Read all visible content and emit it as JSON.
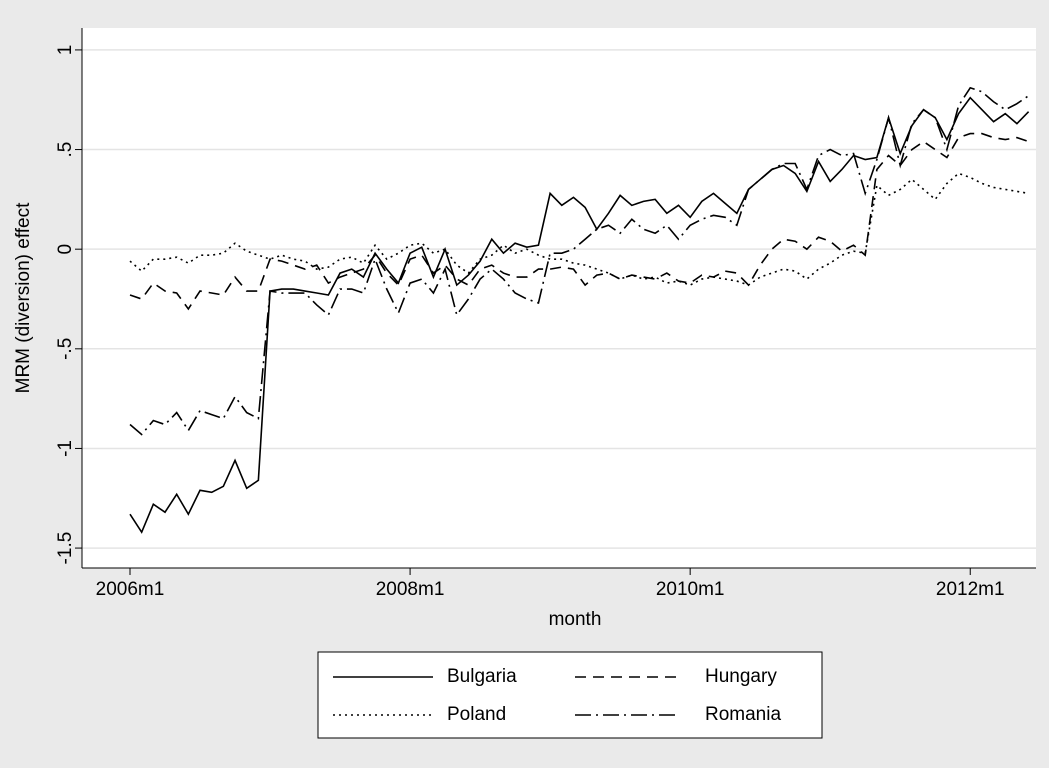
{
  "chart_data": {
    "type": "line",
    "x": [
      "2006m1",
      "2006m2",
      "2006m3",
      "2006m4",
      "2006m5",
      "2006m6",
      "2006m7",
      "2006m8",
      "2006m9",
      "2006m10",
      "2006m11",
      "2006m12",
      "2007m1",
      "2007m2",
      "2007m3",
      "2007m4",
      "2007m5",
      "2007m6",
      "2007m7",
      "2007m8",
      "2007m9",
      "2007m10",
      "2007m11",
      "2007m12",
      "2008m1",
      "2008m2",
      "2008m3",
      "2008m4",
      "2008m5",
      "2008m6",
      "2008m7",
      "2008m8",
      "2008m9",
      "2008m10",
      "2008m11",
      "2008m12",
      "2009m1",
      "2009m2",
      "2009m3",
      "2009m4",
      "2009m5",
      "2009m6",
      "2009m7",
      "2009m8",
      "2009m9",
      "2009m10",
      "2009m11",
      "2009m12",
      "2010m1",
      "2010m2",
      "2010m3",
      "2010m4",
      "2010m5",
      "2010m6",
      "2010m7",
      "2010m8",
      "2010m9",
      "2010m10",
      "2010m11",
      "2010m12",
      "2011m1",
      "2011m2",
      "2011m3",
      "2011m4",
      "2011m5",
      "2011m6",
      "2011m7",
      "2011m8",
      "2011m9",
      "2011m10",
      "2011m11",
      "2011m12",
      "2012m1",
      "2012m2",
      "2012m3",
      "2012m4",
      "2012m5",
      "2012m6"
    ],
    "xticks": [
      "2006m1",
      "2008m1",
      "2010m1",
      "2012m1"
    ],
    "x_label": "month",
    "y_label": "MRM (diversion) effect",
    "ylim": [
      -1.6,
      1.11
    ],
    "yticks": [
      -1.5,
      -1,
      {
        "value": -0.5,
        "label": "-.5"
      },
      0,
      {
        "value": 0.5,
        "label": ".5"
      },
      1
    ],
    "grid": true,
    "legend": "bottom",
    "series": [
      {
        "name": "Bulgaria",
        "color": "#000000",
        "linestyle": "solid",
        "values": [
          -1.33,
          -1.42,
          -1.28,
          -1.32,
          -1.23,
          -1.33,
          -1.21,
          -1.22,
          -1.19,
          -1.06,
          -1.2,
          -1.16,
          -0.21,
          -0.2,
          -0.2,
          -0.21,
          -0.22,
          -0.23,
          -0.12,
          -0.1,
          -0.14,
          -0.02,
          -0.1,
          -0.17,
          -0.02,
          0.01,
          -0.14,
          0.0,
          -0.18,
          -0.13,
          -0.06,
          0.05,
          -0.02,
          0.03,
          0.01,
          0.02,
          0.28,
          0.22,
          0.26,
          0.21,
          0.1,
          0.18,
          0.27,
          0.22,
          0.24,
          0.25,
          0.18,
          0.22,
          0.16,
          0.24,
          0.28,
          0.23,
          0.18,
          0.3,
          0.35,
          0.4,
          0.42,
          0.38,
          0.29,
          0.44,
          0.34,
          0.4,
          0.47,
          0.45,
          0.46,
          0.66,
          0.48,
          0.62,
          0.7,
          0.66,
          0.55,
          0.68,
          0.76,
          0.7,
          0.64,
          0.68,
          0.63,
          0.69
        ]
      },
      {
        "name": "Hungary",
        "color": "#000000",
        "linestyle": "dashed",
        "values": [
          -0.23,
          -0.25,
          -0.17,
          -0.21,
          -0.22,
          -0.3,
          -0.21,
          -0.22,
          -0.23,
          -0.14,
          -0.21,
          -0.21,
          -0.05,
          -0.06,
          -0.08,
          -0.1,
          -0.08,
          -0.17,
          -0.14,
          -0.12,
          -0.1,
          -0.03,
          -0.12,
          -0.18,
          -0.05,
          -0.03,
          -0.12,
          -0.08,
          -0.15,
          -0.18,
          -0.1,
          -0.08,
          -0.12,
          -0.14,
          -0.14,
          -0.1,
          -0.1,
          -0.09,
          -0.1,
          -0.18,
          -0.13,
          -0.12,
          -0.15,
          -0.13,
          -0.14,
          -0.15,
          -0.12,
          -0.16,
          -0.17,
          -0.13,
          -0.14,
          -0.11,
          -0.12,
          -0.18,
          -0.08,
          0.0,
          0.05,
          0.04,
          0.0,
          0.06,
          0.04,
          -0.01,
          0.02,
          -0.03,
          0.4,
          0.47,
          0.42,
          0.5,
          0.54,
          0.5,
          0.46,
          0.56,
          0.58,
          0.58,
          0.56,
          0.55,
          0.56,
          0.54
        ]
      },
      {
        "name": "Poland",
        "color": "#000000",
        "linestyle": "dotted",
        "values": [
          -0.06,
          -0.11,
          -0.05,
          -0.05,
          -0.04,
          -0.07,
          -0.03,
          -0.03,
          -0.02,
          0.03,
          -0.01,
          -0.03,
          -0.05,
          -0.03,
          -0.05,
          -0.06,
          -0.1,
          -0.09,
          -0.05,
          -0.04,
          -0.07,
          0.02,
          -0.05,
          -0.02,
          0.02,
          0.03,
          -0.02,
          0.0,
          -0.08,
          -0.12,
          -0.05,
          -0.03,
          0.02,
          -0.02,
          0.0,
          -0.03,
          -0.05,
          -0.05,
          -0.07,
          -0.08,
          -0.1,
          -0.12,
          -0.15,
          -0.13,
          -0.15,
          -0.14,
          -0.17,
          -0.16,
          -0.18,
          -0.15,
          -0.14,
          -0.15,
          -0.16,
          -0.18,
          -0.14,
          -0.12,
          -0.1,
          -0.11,
          -0.15,
          -0.1,
          -0.07,
          -0.03,
          -0.01,
          -0.02,
          0.32,
          0.27,
          0.3,
          0.35,
          0.3,
          0.25,
          0.33,
          0.38,
          0.36,
          0.33,
          0.31,
          0.3,
          0.29,
          0.28
        ]
      },
      {
        "name": "Romania",
        "color": "#000000",
        "linestyle": "dashdot",
        "values": [
          -0.88,
          -0.93,
          -0.86,
          -0.88,
          -0.82,
          -0.91,
          -0.81,
          -0.83,
          -0.85,
          -0.74,
          -0.82,
          -0.85,
          -0.21,
          -0.22,
          -0.22,
          -0.22,
          -0.28,
          -0.33,
          -0.2,
          -0.2,
          -0.22,
          -0.05,
          -0.2,
          -0.32,
          -0.17,
          -0.15,
          -0.22,
          -0.1,
          -0.33,
          -0.25,
          -0.15,
          -0.1,
          -0.15,
          -0.22,
          -0.25,
          -0.27,
          -0.02,
          -0.02,
          0.0,
          0.05,
          0.1,
          0.12,
          0.08,
          0.15,
          0.1,
          0.08,
          0.12,
          0.05,
          0.12,
          0.15,
          0.17,
          0.16,
          0.12,
          0.3,
          0.35,
          0.4,
          0.43,
          0.43,
          0.3,
          0.47,
          0.5,
          0.47,
          0.48,
          0.28,
          0.45,
          0.66,
          0.42,
          0.63,
          0.7,
          0.66,
          0.5,
          0.72,
          0.81,
          0.79,
          0.74,
          0.7,
          0.73,
          0.77
        ]
      }
    ]
  }
}
